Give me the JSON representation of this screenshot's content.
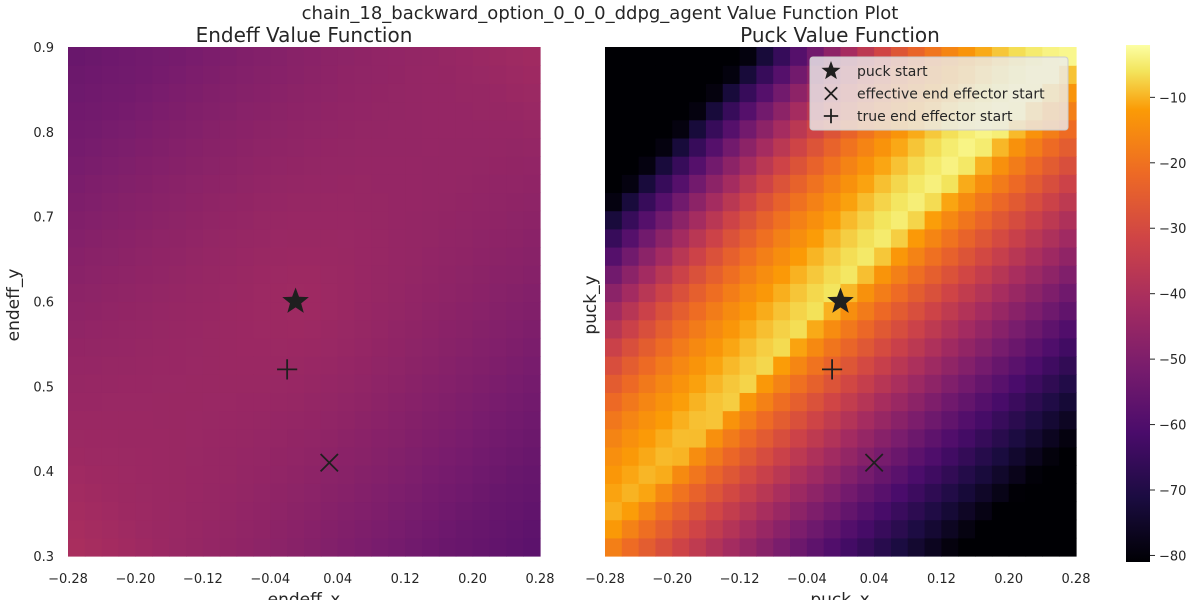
{
  "suptitle": "chain_18_backward_option_0_0_0_ddpg_agent Value Function Plot",
  "chart_data": [
    {
      "type": "heatmap",
      "title": "Endeff Value Function",
      "xlabel": "endeff_x",
      "ylabel": "endeff_y",
      "xlim": [
        -0.28,
        0.28
      ],
      "ylim": [
        0.3,
        0.9
      ],
      "x_ticks": [
        "−0.28",
        "−0.20",
        "−0.12",
        "−0.04",
        "0.04",
        "0.12",
        "0.20",
        "0.28"
      ],
      "y_ticks": [
        "0.3",
        "0.4",
        "0.5",
        "0.6",
        "0.7",
        "0.8",
        "0.9"
      ],
      "colormap": "inferno",
      "grid_size": [
        28,
        28
      ],
      "value_model": {
        "description": "approximate value field read from colors",
        "anchors": [
          {
            "x": -0.28,
            "y": 0.9,
            "value": -55
          },
          {
            "x": -0.28,
            "y": 0.3,
            "value": -40
          },
          {
            "x": 0.28,
            "y": 0.9,
            "value": -42
          },
          {
            "x": 0.28,
            "y": 0.3,
            "value": -58
          },
          {
            "x": 0.0,
            "y": 0.6,
            "value": -38
          }
        ]
      },
      "markers": [
        {
          "name": "puck start",
          "symbol": "star",
          "x": -0.01,
          "y": 0.6
        },
        {
          "name": "effective end effector start",
          "symbol": "x",
          "x": 0.03,
          "y": 0.41
        },
        {
          "name": "true end effector start",
          "symbol": "plus",
          "x": -0.02,
          "y": 0.52
        }
      ]
    },
    {
      "type": "heatmap",
      "title": "Puck Value Function",
      "xlabel": "puck_x",
      "ylabel": "puck_y",
      "xlim": [
        -0.28,
        0.28
      ],
      "ylim": [
        0.3,
        0.9
      ],
      "x_ticks": [
        "−0.28",
        "−0.20",
        "−0.12",
        "−0.04",
        "0.04",
        "0.12",
        "0.20",
        "0.28"
      ],
      "colormap": "inferno",
      "grid_size": [
        28,
        28
      ],
      "value_model": {
        "description": "ridge of high value along the line from upper-right to left-middle, dropping to about -80 in the lower-right",
        "max": -3,
        "min": -81
      },
      "markers": [
        {
          "name": "puck start",
          "symbol": "star",
          "x": 0.0,
          "y": 0.6
        },
        {
          "name": "effective end effector start",
          "symbol": "x",
          "x": 0.04,
          "y": 0.41
        },
        {
          "name": "true end effector start",
          "symbol": "plus",
          "x": -0.01,
          "y": 0.52
        }
      ],
      "legend": {
        "placement": "top-right",
        "entries": [
          "puck start",
          "effective end effector start",
          "true end effector start"
        ]
      }
    }
  ],
  "colorbar": {
    "range": [
      -81,
      -2
    ],
    "ticks": [
      {
        "value": -10,
        "label": "−10"
      },
      {
        "value": -20,
        "label": "−20"
      },
      {
        "value": -30,
        "label": "−30"
      },
      {
        "value": -40,
        "label": "−40"
      },
      {
        "value": -50,
        "label": "−50"
      },
      {
        "value": -60,
        "label": "−60"
      },
      {
        "value": -70,
        "label": "−70"
      },
      {
        "value": -80,
        "label": "−80"
      }
    ]
  }
}
